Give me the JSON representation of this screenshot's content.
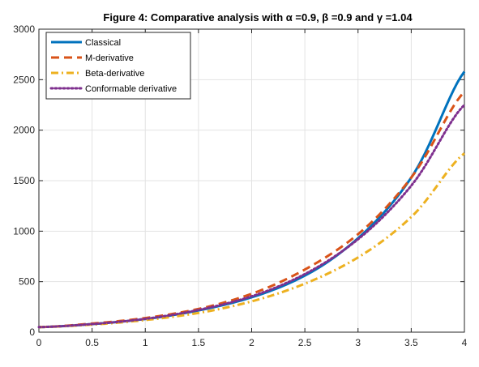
{
  "chart_data": {
    "type": "line",
    "title": "Figure 4: Comparative analysis with α =0.9, β =0.9 and γ =1.04",
    "xlabel": "",
    "ylabel": "",
    "xlim": [
      0,
      4
    ],
    "ylim": [
      0,
      3000
    ],
    "grid": true,
    "legend_position": "top-left",
    "x_ticks": [
      "0",
      "0.5",
      "1",
      "1.5",
      "2",
      "2.5",
      "3",
      "3.5",
      "4"
    ],
    "y_ticks": [
      "0",
      "500",
      "1000",
      "1500",
      "2000",
      "2500",
      "3000"
    ],
    "x": [
      0,
      0.5,
      1,
      1.5,
      2,
      2.5,
      3,
      3.5,
      4
    ],
    "series": [
      {
        "name": "Classical",
        "color": "#0072BD",
        "style": "solid",
        "values": [
          50,
          80,
          130,
          215,
          345,
          560,
          930,
          1530,
          2580
        ]
      },
      {
        "name": "M-derivative",
        "color": "#D95319",
        "style": "dashed",
        "values": [
          50,
          85,
          140,
          230,
          380,
          620,
          970,
          1530,
          2380
        ]
      },
      {
        "name": "Beta-derivative",
        "color": "#EDB120",
        "style": "dashdot",
        "values": [
          50,
          75,
          120,
          190,
          305,
          480,
          740,
          1140,
          1770
        ]
      },
      {
        "name": "Conformable derivative",
        "color": "#7E2F8E",
        "style": "dotted",
        "values": [
          50,
          80,
          132,
          220,
          355,
          575,
          920,
          1450,
          2250
        ]
      }
    ]
  }
}
